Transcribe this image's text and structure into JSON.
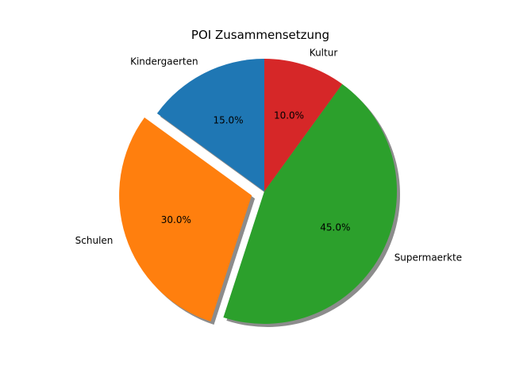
{
  "chart_data": {
    "type": "pie",
    "title": "POI Zusammensetzung",
    "slices": [
      {
        "label": "Kindergaerten",
        "value": 15.0,
        "pct_label": "15.0%",
        "color": "#1f77b4",
        "exploded": false
      },
      {
        "label": "Schulen",
        "value": 30.0,
        "pct_label": "30.0%",
        "color": "#ff7f0e",
        "exploded": true
      },
      {
        "label": "Supermaerkte",
        "value": 45.0,
        "pct_label": "45.0%",
        "color": "#2ca02c",
        "exploded": false
      },
      {
        "label": "Kultur",
        "value": 10.0,
        "pct_label": "10.0%",
        "color": "#d62728",
        "exploded": false
      }
    ],
    "start_angle_deg": 90,
    "direction": "counterclockwise",
    "shadow": true,
    "legend": "none"
  }
}
